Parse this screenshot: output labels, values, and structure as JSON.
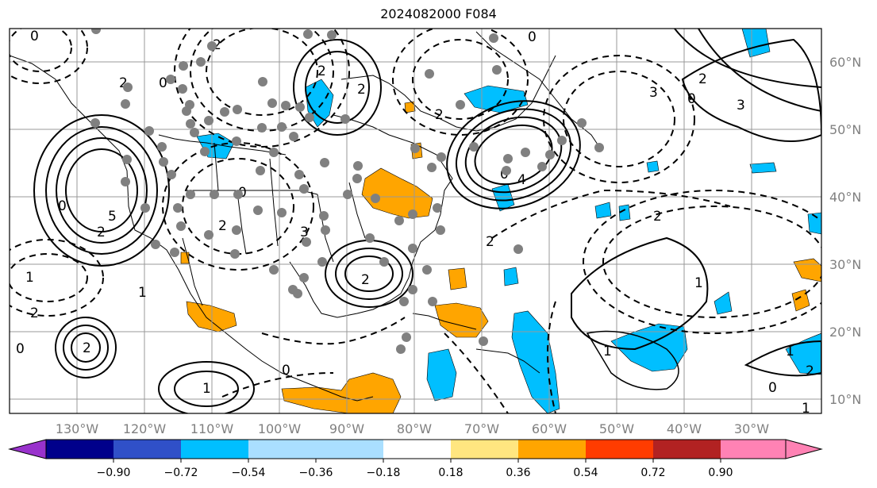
{
  "title": "2024082000 F084",
  "longitude_labels": [
    "130°W",
    "120°W",
    "110°W",
    "100°W",
    "90°W",
    "80°W",
    "70°W",
    "60°W",
    "50°W",
    "40°W",
    "30°W"
  ],
  "latitude_labels": [
    "60°N",
    "50°N",
    "40°N",
    "30°N",
    "20°N",
    "10°N"
  ],
  "colorbar": {
    "tick_labels": [
      "−0.90",
      "−0.72",
      "−0.54",
      "−0.36",
      "−0.18",
      "0.18",
      "0.36",
      "0.54",
      "0.72",
      "0.90"
    ],
    "colors": [
      "#9932cc",
      "#00008b",
      "#3050c8",
      "#00bfff",
      "#aadfff",
      "#ffffff",
      "#ffe680",
      "#ffa500",
      "#ff3c00",
      "#b22222",
      "#ff82b4"
    ]
  },
  "shading": {
    "positive_color": "#ffa500",
    "negative_color": "#00bfff"
  },
  "contour_labels": [
    "0",
    "2",
    "0",
    "2",
    "2",
    "2",
    "2",
    "0",
    "2",
    "0",
    "3",
    "0",
    "5",
    "2",
    "0",
    "2",
    "3",
    "2",
    "1",
    "2",
    "1",
    "0",
    "2",
    "1",
    "0",
    "4",
    "0",
    "1",
    "2",
    "2",
    "1",
    "2",
    "0",
    "1",
    "3",
    "1"
  ]
}
